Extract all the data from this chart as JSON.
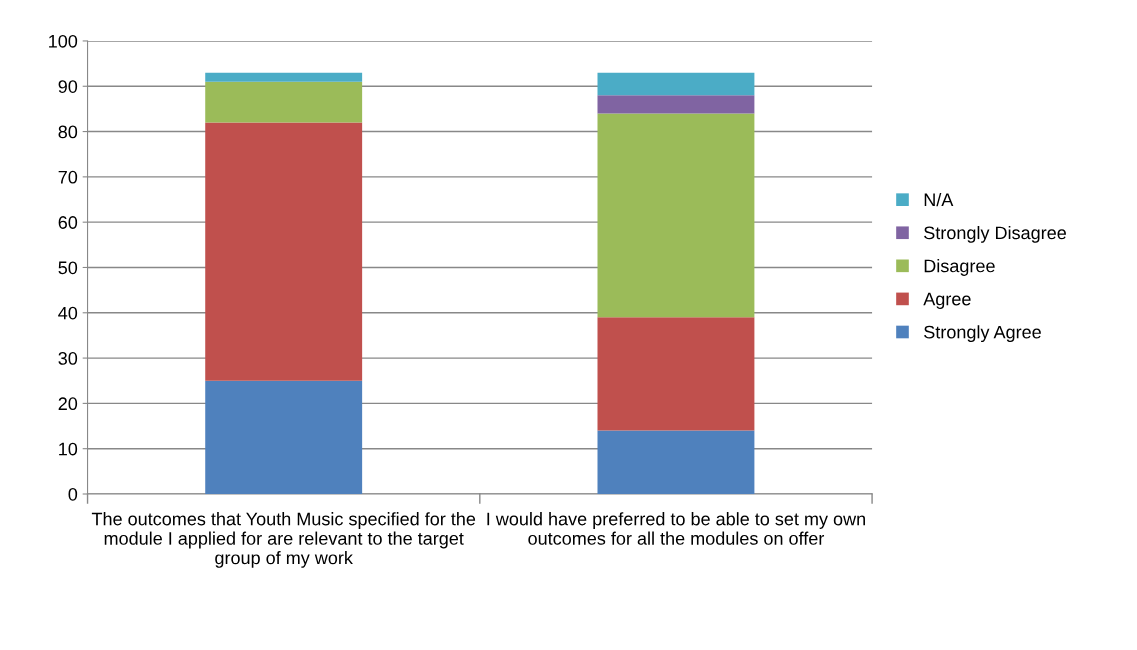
{
  "chart_data": {
    "type": "bar",
    "stacked": true,
    "categories": [
      "The outcomes that Youth Music specified for the module I applied for are relevant to the target group of my work",
      "I would have preferred to be able to set my own outcomes for all the modules on offer"
    ],
    "series": [
      {
        "name": "Strongly Agree",
        "color": "#4f81bd",
        "values": [
          25,
          14
        ]
      },
      {
        "name": "Agree",
        "color": "#c0504d",
        "values": [
          57,
          25
        ]
      },
      {
        "name": "Disagree",
        "color": "#9bbb59",
        "values": [
          9,
          45
        ]
      },
      {
        "name": "Strongly Disagree",
        "color": "#8064a2",
        "values": [
          0,
          4
        ]
      },
      {
        "name": "N/A",
        "color": "#4bacc6",
        "values": [
          2,
          5
        ]
      }
    ],
    "ylim": [
      0,
      100
    ],
    "yticks": [
      0,
      10,
      20,
      30,
      40,
      50,
      60,
      70,
      80,
      90,
      100
    ],
    "grid": "y",
    "legend": "right"
  }
}
